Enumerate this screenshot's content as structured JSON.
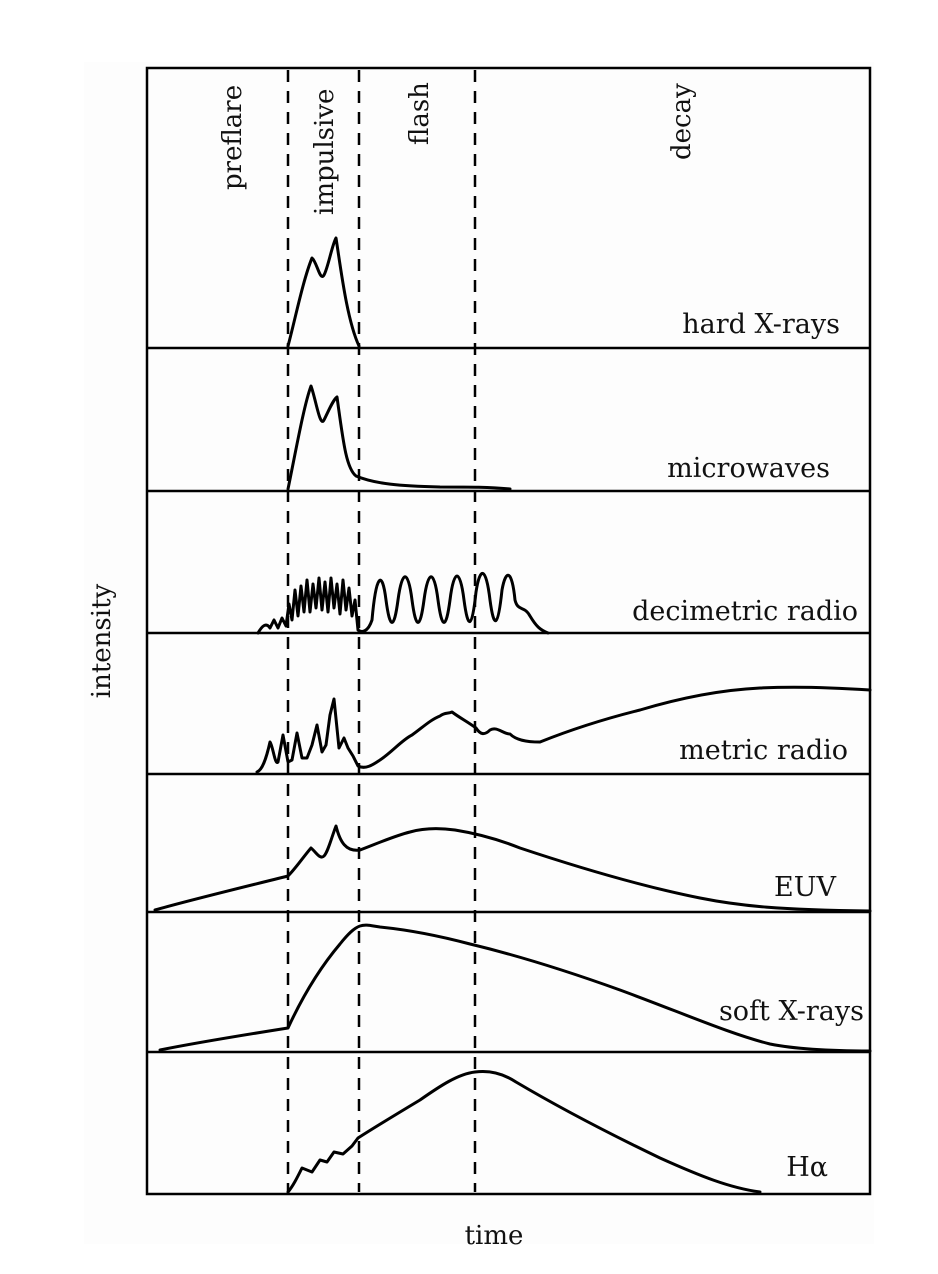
{
  "phases": [
    "preflare",
    "impulsive",
    "flash",
    "decay"
  ],
  "bands": [
    "hard X-rays",
    "microwaves",
    "decimetric radio",
    "metric radio",
    "EUV",
    "soft X-rays",
    "Hα"
  ],
  "axes": {
    "x_label": "time",
    "y_label": "intensity"
  }
}
